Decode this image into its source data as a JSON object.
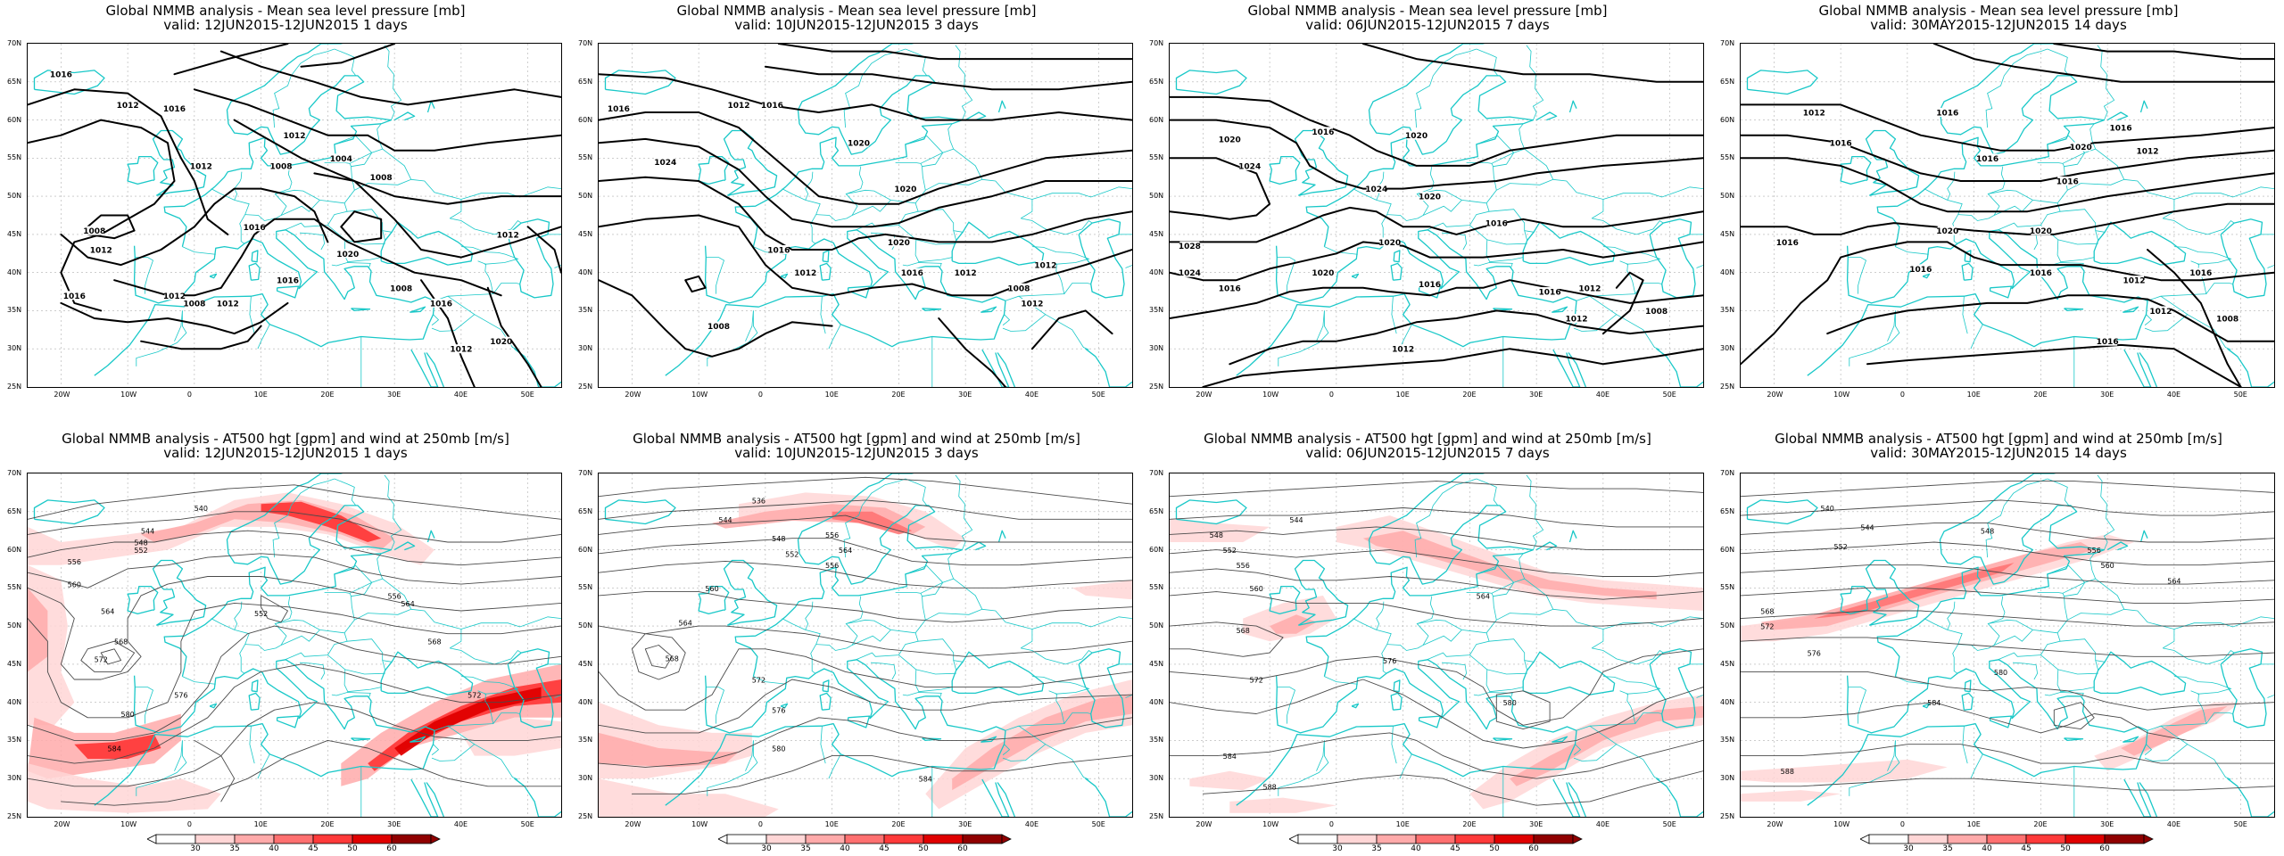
{
  "panels_top": [
    {
      "title1": "Global NMMB analysis - Mean sea level pressure [mb]",
      "title2": "valid: 12JUN2015-12JUN2015  1 days"
    },
    {
      "title1": "Global NMMB analysis - Mean sea level pressure [mb]",
      "title2": "valid: 10JUN2015-12JUN2015  3 days"
    },
    {
      "title1": "Global NMMB analysis - Mean sea level pressure [mb]",
      "title2": "valid: 06JUN2015-12JUN2015  7 days"
    },
    {
      "title1": "Global NMMB analysis - Mean sea level pressure [mb]",
      "title2": "valid: 30MAY2015-12JUN2015  14 days"
    }
  ],
  "panels_bottom": [
    {
      "title1": "Global NMMB analysis - AT500 hgt [gpm] and wind at 250mb [m/s]",
      "title2": "valid: 12JUN2015-12JUN2015  1 days"
    },
    {
      "title1": "Global NMMB analysis - AT500 hgt [gpm] and wind at 250mb [m/s]",
      "title2": "valid: 10JUN2015-12JUN2015  3 days"
    },
    {
      "title1": "Global NMMB analysis - AT500 hgt [gpm] and wind at 250mb [m/s]",
      "title2": "valid: 06JUN2015-12JUN2015  7 days"
    },
    {
      "title1": "Global NMMB analysis - AT500 hgt [gpm] and wind at 250mb [m/s]",
      "title2": "valid: 30MAY2015-12JUN2015  14 days"
    }
  ],
  "lat_labels": [
    "70N",
    "65N",
    "60N",
    "55N",
    "50N",
    "45N",
    "40N",
    "35N",
    "30N",
    "25N"
  ],
  "lon_labels": [
    "20W",
    "10W",
    "0",
    "10E",
    "20E",
    "30E",
    "40E",
    "50E"
  ],
  "colorbar_labels": [
    "30",
    "35",
    "40",
    "45",
    "50",
    "60"
  ],
  "colorbar_colors": [
    "#ffffff",
    "#ffd6d6",
    "#ffaaaa",
    "#ff7070",
    "#ff3a3a",
    "#e00000",
    "#900000"
  ],
  "mslp_labels": {
    "p1": [
      "1016",
      "1012",
      "1016",
      "1012",
      "1008",
      "1012",
      "1016",
      "1012",
      "1008",
      "1012",
      "1016",
      "1020",
      "1016",
      "1012",
      "1008",
      "1004",
      "1008",
      "1016",
      "1012",
      "1020",
      "1008",
      "1012"
    ],
    "p2": [
      "1016",
      "1012",
      "1016",
      "1020",
      "1024",
      "1020",
      "1020",
      "1016",
      "1012",
      "1016",
      "1012",
      "1008",
      "1012",
      "1012",
      "1008"
    ],
    "p3": [
      "1016",
      "1020",
      "1024",
      "1020",
      "1024",
      "1020",
      "1016",
      "1028",
      "1024",
      "1020",
      "1020",
      "1016",
      "1016",
      "1012",
      "1016",
      "1012",
      "1012",
      "1008"
    ],
    "p4": [
      "1012",
      "1016",
      "1016",
      "1020",
      "1016",
      "1012",
      "1016",
      "1016",
      "1020",
      "1020",
      "1016",
      "1016",
      "1016",
      "1012",
      "1016",
      "1012",
      "1008",
      "1016"
    ]
  },
  "z500_labels": {
    "p1": [
      "540",
      "544",
      "548",
      "552",
      "556",
      "560",
      "564",
      "568",
      "572",
      "576",
      "580",
      "584",
      "552",
      "556",
      "564",
      "568",
      "572"
    ],
    "p2": [
      "536",
      "544",
      "548",
      "552",
      "556",
      "560",
      "564",
      "568",
      "572",
      "576",
      "580",
      "584",
      "556",
      "564"
    ],
    "p3": [
      "544",
      "548",
      "552",
      "556",
      "560",
      "564",
      "568",
      "572",
      "576",
      "580",
      "584",
      "588"
    ],
    "p4": [
      "540",
      "544",
      "548",
      "552",
      "556",
      "560",
      "564",
      "568",
      "572",
      "576",
      "580",
      "584",
      "588"
    ]
  }
}
